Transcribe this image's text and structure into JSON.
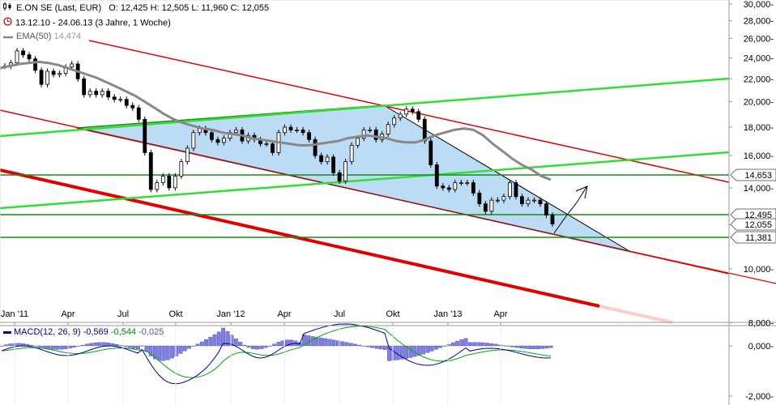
{
  "header": {
    "title": "E.ON SE (Last, EUR)",
    "ohlc": "O: 12,425  H: 12,505  L: 11,960  C: 12,055",
    "range": "13.12.10 - 24.06.13 (3 Jahre, 1 Woche)",
    "ema_label": "EMA(50)",
    "ema_value": "14,474",
    "icon_ohlc": "candle-icon",
    "icon_range": "clock-icon"
  },
  "macd_label": {
    "name": "MACD(12, 26, 9)",
    "v1": "-0,569",
    "v2": "-0,544",
    "v3": "-0,025"
  },
  "colors": {
    "candle": "#000000",
    "ema": "#888888",
    "trend_red": "#e00000",
    "trend_green": "#33dd33",
    "level_green": "#1a8a1a",
    "triangle_fill": "#bcdcf6",
    "macd_line": "#000090",
    "signal_line": "#00aa00",
    "histogram": "#7f7fdf"
  },
  "chart_data": {
    "type": "candlestick",
    "x_ticks": [
      "Jan '11",
      "Apr",
      "Jul",
      "Okt",
      "Jan '12",
      "Apr",
      "Jul",
      "Okt",
      "Jan '13",
      "Apr"
    ],
    "y_ticks": [
      "30,000-",
      "28,000-",
      "26,000-",
      "24,000-",
      "22,000-",
      "20,000-",
      "18,000-",
      "16,000-",
      "14,000-",
      "12,000-",
      "10,000-",
      "8,000-"
    ],
    "y_range": [
      8,
      30
    ],
    "scale": "log",
    "price_labels": [
      "14,653",
      "12,495",
      "12,055",
      "11,381"
    ],
    "macd_ticks": [
      "0,000-",
      "-2,000-"
    ],
    "close_prices": [
      23.2,
      23.5,
      24.7,
      24.3,
      23.9,
      22.8,
      21.5,
      22.7,
      22.4,
      22.5,
      23.1,
      23.4,
      22.0,
      20.6,
      20.9,
      20.6,
      20.9,
      20.4,
      20.2,
      20.2,
      19.7,
      19.5,
      18.6,
      16.2,
      13.9,
      14.3,
      14.7,
      14.0,
      14.7,
      15.6,
      16.5,
      17.6,
      17.9,
      17.6,
      17.1,
      16.9,
      17.2,
      17.6,
      17.8,
      17.0,
      17.4,
      17.1,
      16.8,
      16.8,
      16.2,
      17.6,
      18.0,
      17.8,
      17.8,
      17.6,
      17.1,
      16.0,
      15.6,
      15.9,
      14.9,
      14.4,
      15.6,
      16.7,
      17.2,
      17.8,
      17.8,
      17.1,
      17.5,
      18.2,
      18.7,
      19.0,
      19.4,
      19.2,
      18.6,
      17.0,
      15.4,
      14.1,
      14.0,
      13.9,
      14.3,
      14.3,
      14.3,
      13.7,
      13.1,
      12.7,
      13.3,
      13.3,
      13.5,
      14.3,
      13.5,
      13.1,
      13.3,
      13.3,
      13.1,
      12.5,
      12.05
    ],
    "ema50": [
      23.0,
      23.2,
      23.4,
      23.5,
      23.6,
      23.5,
      23.3,
      23.0,
      22.7,
      22.4,
      22.1,
      21.7,
      21.3,
      20.9,
      20.5,
      20.0,
      19.5,
      19.0,
      18.6,
      18.3,
      18.1,
      17.9,
      17.8,
      17.6,
      17.5,
      17.4,
      17.2,
      17.1,
      17.0,
      16.9,
      16.8,
      16.7,
      16.7,
      16.8,
      16.9,
      17.0,
      17.2,
      17.3,
      17.4,
      17.3,
      17.2,
      17.0,
      16.9,
      16.9,
      17.1,
      17.4,
      17.6,
      17.8,
      17.9,
      17.8,
      17.4,
      16.8,
      16.3,
      15.8,
      15.4,
      15.1,
      14.7,
      14.474
    ],
    "ema_start_index": 0
  }
}
